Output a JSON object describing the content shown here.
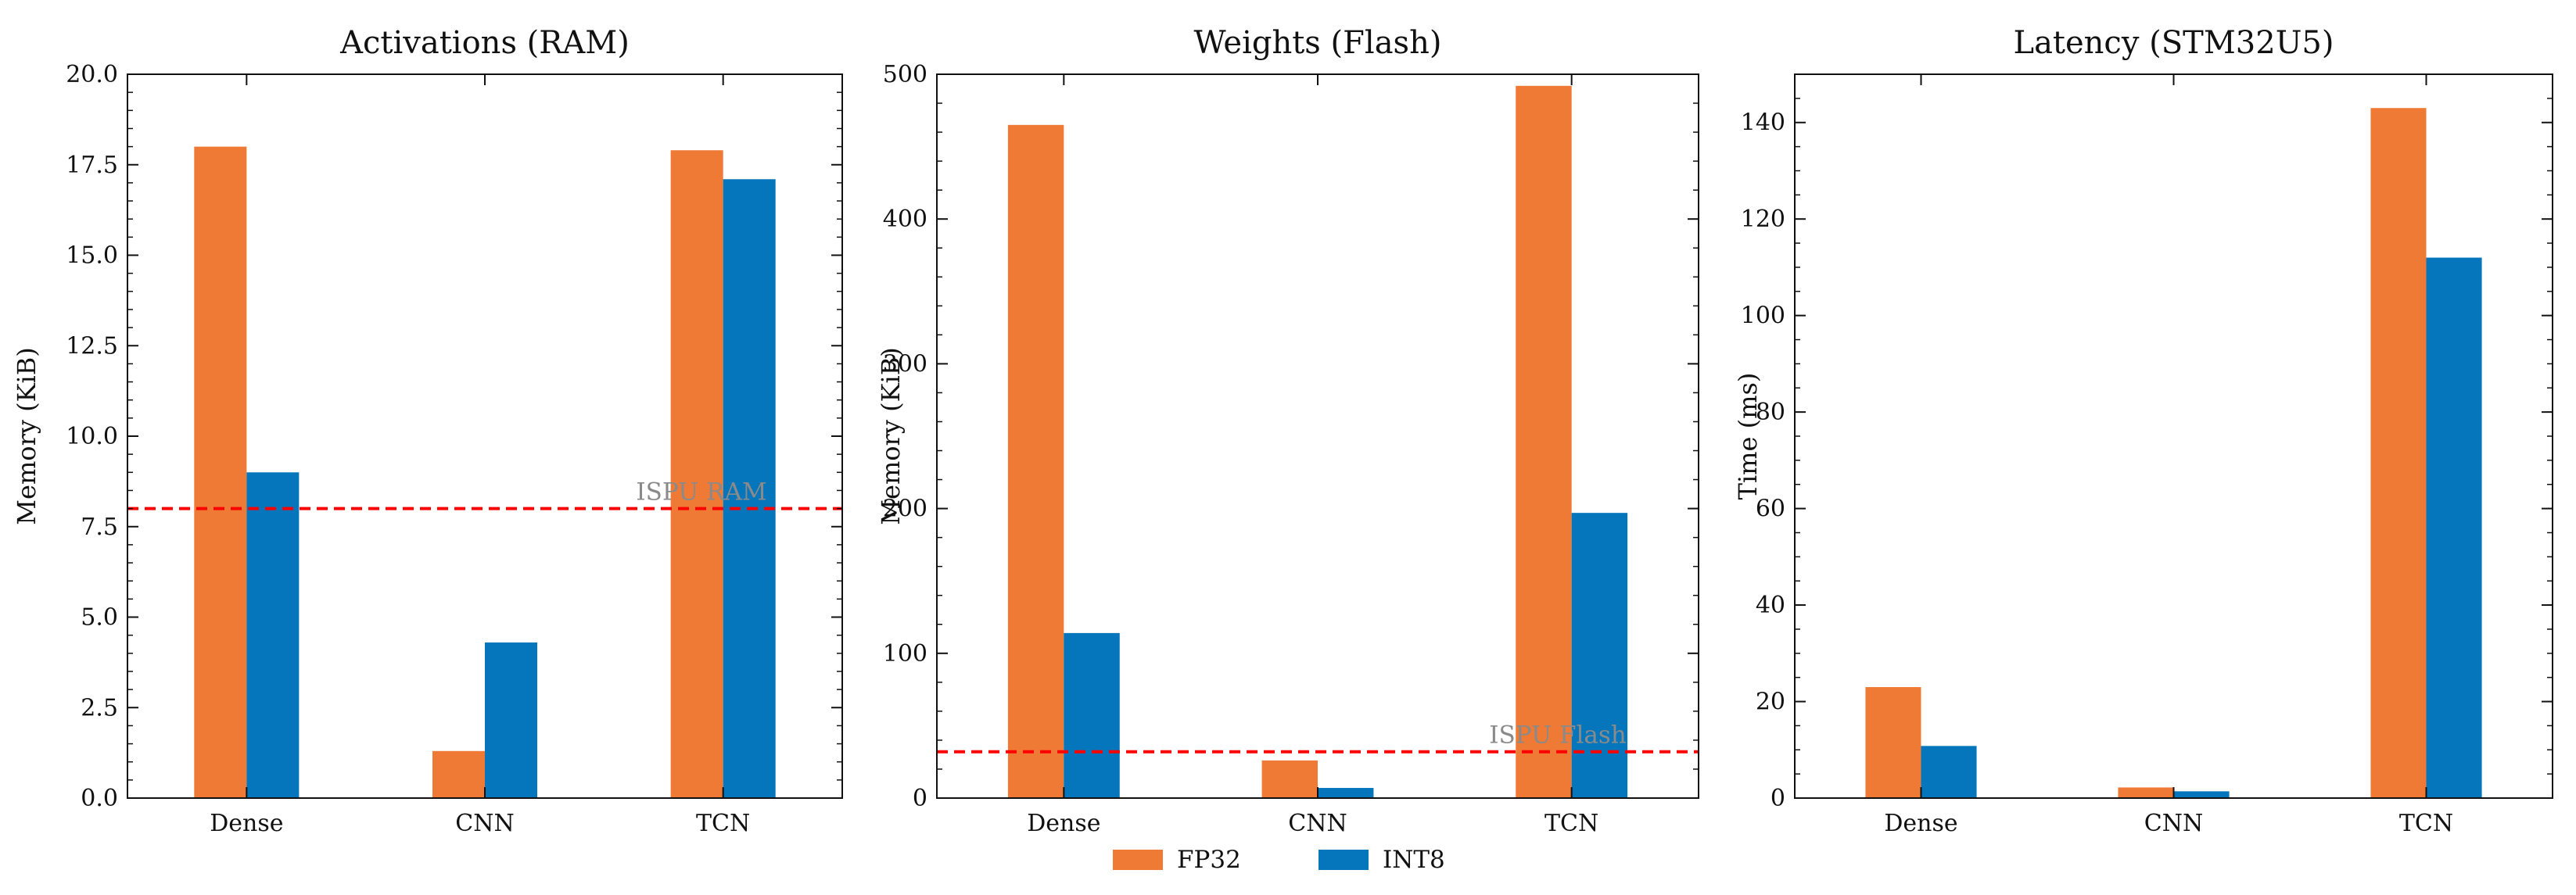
{
  "chart_data": [
    {
      "type": "bar",
      "title": "Activations (RAM)",
      "xlabel": "",
      "ylabel": "Memory (KiB)",
      "categories": [
        "Dense",
        "CNN",
        "TCN"
      ],
      "ylim": [
        0,
        20
      ],
      "yticks": [
        0,
        2.5,
        5,
        7.5,
        10,
        12.5,
        15,
        17.5,
        20
      ],
      "ytick_labels": [
        "0.0",
        "2.5",
        "5.0",
        "7.5",
        "10.0",
        "12.5",
        "15.0",
        "17.5",
        "20.0"
      ],
      "minor_step": 0.5,
      "series": [
        {
          "name": "FP32",
          "values": [
            18.0,
            1.3,
            17.9
          ]
        },
        {
          "name": "INT8",
          "values": [
            9.0,
            4.3,
            17.1
          ]
        }
      ],
      "reference_line": {
        "value": 8,
        "label": "ISPU RAM",
        "color": "#ff0000"
      }
    },
    {
      "type": "bar",
      "title": "Weights (Flash)",
      "xlabel": "",
      "ylabel": "Memory (KiB)",
      "categories": [
        "Dense",
        "CNN",
        "TCN"
      ],
      "ylim": [
        0,
        500
      ],
      "yticks": [
        0,
        100,
        200,
        300,
        400,
        500
      ],
      "ytick_labels": [
        "0",
        "100",
        "200",
        "300",
        "400",
        "500"
      ],
      "minor_step": 20,
      "series": [
        {
          "name": "FP32",
          "values": [
            465,
            26,
            492
          ]
        },
        {
          "name": "INT8",
          "values": [
            114,
            7,
            197
          ]
        }
      ],
      "reference_line": {
        "value": 32,
        "label": "ISPU Flash",
        "color": "#ff0000"
      }
    },
    {
      "type": "bar",
      "title": "Latency (STM32U5)",
      "xlabel": "",
      "ylabel": "Time (ms)",
      "categories": [
        "Dense",
        "CNN",
        "TCN"
      ],
      "ylim": [
        0,
        150
      ],
      "yticks": [
        0,
        20,
        40,
        60,
        80,
        100,
        120,
        140
      ],
      "ytick_labels": [
        "0",
        "20",
        "40",
        "60",
        "80",
        "100",
        "120",
        "140"
      ],
      "minor_step": 5,
      "series": [
        {
          "name": "FP32",
          "values": [
            23,
            2.2,
            143
          ]
        },
        {
          "name": "INT8",
          "values": [
            10.8,
            1.4,
            112
          ]
        }
      ],
      "reference_line": null
    }
  ],
  "legend": {
    "placement": "bottom-center",
    "items": [
      {
        "name": "FP32",
        "color": "#ef7a35"
      },
      {
        "name": "INT8",
        "color": "#0576bb"
      }
    ]
  },
  "colors": {
    "fp32": "#ef7a35",
    "int8": "#0576bb",
    "reference": "#ff0000",
    "annotation": "#8a8a8a"
  }
}
